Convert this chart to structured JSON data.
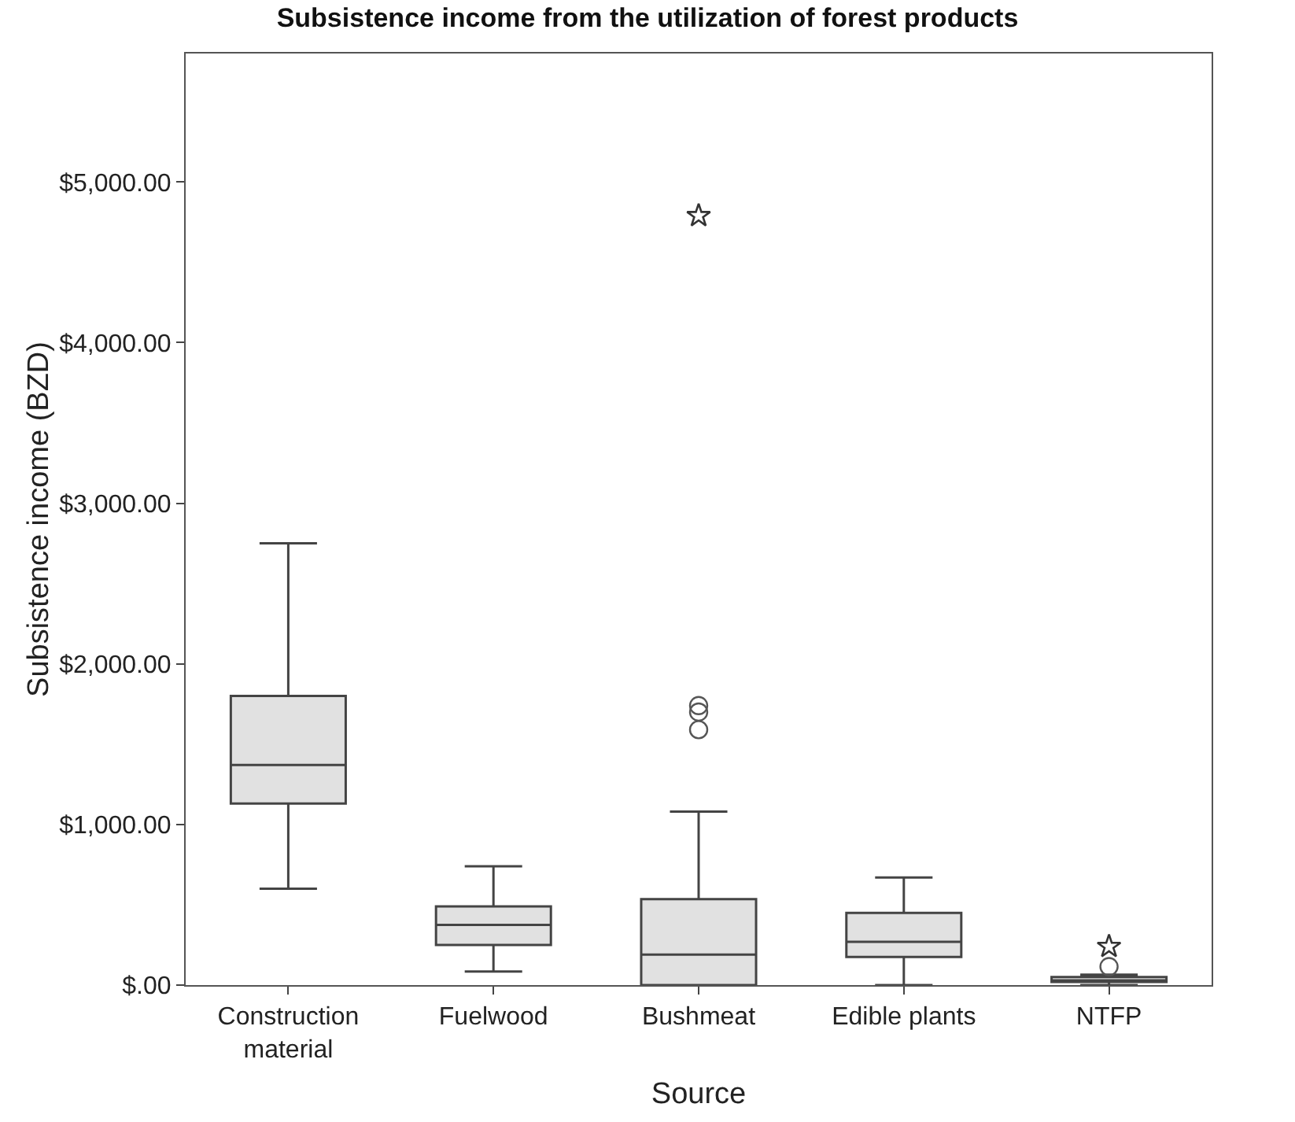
{
  "chart_data": {
    "type": "box",
    "title": "Subsistence income from the utilization of forest products",
    "xlabel": "Source",
    "ylabel": "Subsistence income (BZD)",
    "categories": [
      "Construction material",
      "Fuelwood",
      "Bushmeat",
      "Edible plants",
      "NTFP"
    ],
    "color": "#e1e1e1",
    "boxes": [
      {
        "low": 600,
        "q1": 1130,
        "median": 1370,
        "q3": 1800,
        "high": 2750
      },
      {
        "low": 85,
        "q1": 250,
        "median": 375,
        "q3": 490,
        "high": 740
      },
      {
        "low": 0,
        "q1": 0,
        "median": 190,
        "q3": 535,
        "high": 1080,
        "outliers": [
          1740,
          1700,
          1590
        ]
      },
      {
        "low": 0,
        "q1": 175,
        "median": 270,
        "q3": 450,
        "high": 670
      },
      {
        "low": 0,
        "q1": 20,
        "median": 30,
        "q3": 50,
        "high": 65,
        "outliers": [
          115
        ]
      }
    ],
    "series": [
      {
        "type": "scatter",
        "marker": "star",
        "color": "#333333",
        "x": [
          "Bushmeat",
          "NTFP"
        ],
        "values": [
          4790,
          240
        ]
      }
    ],
    "ylim": [
      0,
      5800
    ],
    "yticks": [
      {
        "value": 0,
        "label": "$.00"
      },
      {
        "value": 1000,
        "label": "$1,000.00"
      },
      {
        "value": 2000,
        "label": "$2,000.00"
      },
      {
        "value": 3000,
        "label": "$3,000.00"
      },
      {
        "value": 4000,
        "label": "$4,000.00"
      },
      {
        "value": 5000,
        "label": "$5,000.00"
      }
    ],
    "grid": false
  }
}
